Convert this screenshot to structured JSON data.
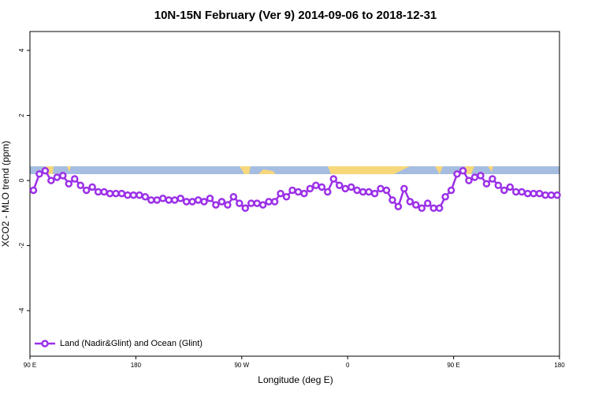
{
  "chart_data": {
    "type": "line",
    "title": "10N-15N February (Ver 9)   2014-09-06 to 2018-12-31",
    "x_label": "Longitude (deg E)",
    "y_label": "XCO2 - MLO trend (ppm)",
    "xlim": [
      90,
      540
    ],
    "ylim": [
      -5.4,
      4.58
    ],
    "xticks": [
      {
        "value": 90,
        "label": "90 E"
      },
      {
        "value": 180,
        "label": "180"
      },
      {
        "value": 270,
        "label": "90 W"
      },
      {
        "value": 360,
        "label": "0"
      },
      {
        "value": 450,
        "label": "90 E"
      },
      {
        "value": 540,
        "label": "180"
      }
    ],
    "yticks": [
      -4,
      -2,
      0,
      2,
      4
    ],
    "legend": "bottom-left",
    "x": [
      93,
      98,
      103,
      108,
      113,
      118,
      123,
      128,
      133,
      138,
      143,
      148,
      153,
      158,
      163,
      168,
      173,
      178,
      183,
      188,
      193,
      198,
      203,
      208,
      213,
      218,
      223,
      228,
      233,
      238,
      243,
      248,
      253,
      258,
      263,
      268,
      273,
      278,
      283,
      288,
      293,
      298,
      303,
      308,
      313,
      318,
      323,
      328,
      333,
      338,
      343,
      348,
      353,
      358,
      363,
      368,
      373,
      378,
      383,
      388,
      393,
      398,
      403,
      408,
      413,
      418,
      423,
      428,
      433,
      438,
      443,
      448,
      453,
      458,
      463,
      468,
      473,
      478,
      483,
      488,
      493,
      498,
      503,
      508,
      513,
      518,
      523,
      528,
      533,
      538
    ],
    "series": [
      {
        "name": "Land (Nadir&Glint) and Ocean (Glint)",
        "color": "#9b30e8",
        "values": [
          -0.3,
          0.2,
          0.3,
          0.0,
          0.1,
          0.15,
          -0.1,
          0.05,
          -0.15,
          -0.3,
          -0.2,
          -0.35,
          -0.35,
          -0.4,
          -0.4,
          -0.4,
          -0.45,
          -0.45,
          -0.45,
          -0.5,
          -0.6,
          -0.6,
          -0.55,
          -0.6,
          -0.6,
          -0.55,
          -0.65,
          -0.65,
          -0.6,
          -0.65,
          -0.55,
          -0.75,
          -0.65,
          -0.75,
          -0.5,
          -0.7,
          -0.85,
          -0.7,
          -0.7,
          -0.75,
          -0.65,
          -0.65,
          -0.4,
          -0.5,
          -0.3,
          -0.35,
          -0.4,
          -0.25,
          -0.15,
          -0.2,
          -0.35,
          0.05,
          -0.15,
          -0.25,
          -0.2,
          -0.3,
          -0.35,
          -0.35,
          -0.4,
          -0.25,
          -0.3,
          -0.6,
          -0.8,
          -0.25,
          -0.65,
          -0.75,
          -0.85,
          -0.7,
          -0.85,
          -0.85,
          -0.5,
          -0.3,
          0.2,
          0.3,
          0.0,
          0.1,
          0.15,
          -0.1,
          0.05,
          -0.15,
          -0.3,
          -0.2,
          -0.35,
          -0.35,
          -0.4,
          -0.4,
          -0.4,
          -0.45,
          -0.45,
          -0.45
        ]
      }
    ]
  }
}
